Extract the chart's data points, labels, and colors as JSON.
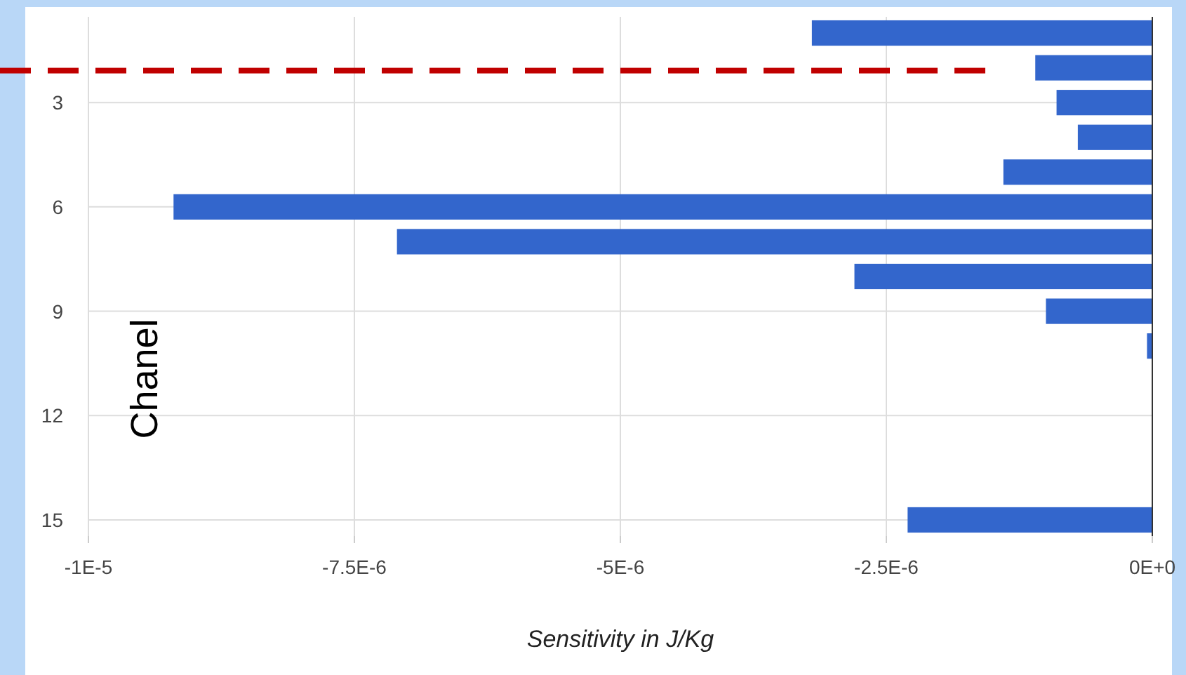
{
  "chart_data": {
    "type": "bar",
    "orientation": "horizontal",
    "xlabel": "Sensitivity in J/Kg",
    "ylabel": "Chanel",
    "categories": [
      null,
      null,
      "3",
      null,
      null,
      "6",
      null,
      null,
      "9",
      null,
      null,
      "12",
      null,
      null,
      "15"
    ],
    "values": [
      -3.2e-06,
      -1.1e-06,
      -9e-07,
      -7e-07,
      -1.4e-06,
      -9.2e-06,
      -7.1e-06,
      -2.8e-06,
      -1e-06,
      -5e-08,
      0,
      0,
      0,
      0,
      -2.3e-06
    ],
    "color": "#3366cc",
    "xlim": [
      -1e-05,
      0
    ],
    "xticks": [
      {
        "value": -1e-05,
        "label": "-1E-5"
      },
      {
        "value": -7.5e-06,
        "label": "-7.5E-6"
      },
      {
        "value": -5e-06,
        "label": "-5E-6"
      },
      {
        "value": -2.5e-06,
        "label": "-2.5E-6"
      },
      {
        "value": 0,
        "label": "0E+0"
      }
    ],
    "grid": true
  }
}
